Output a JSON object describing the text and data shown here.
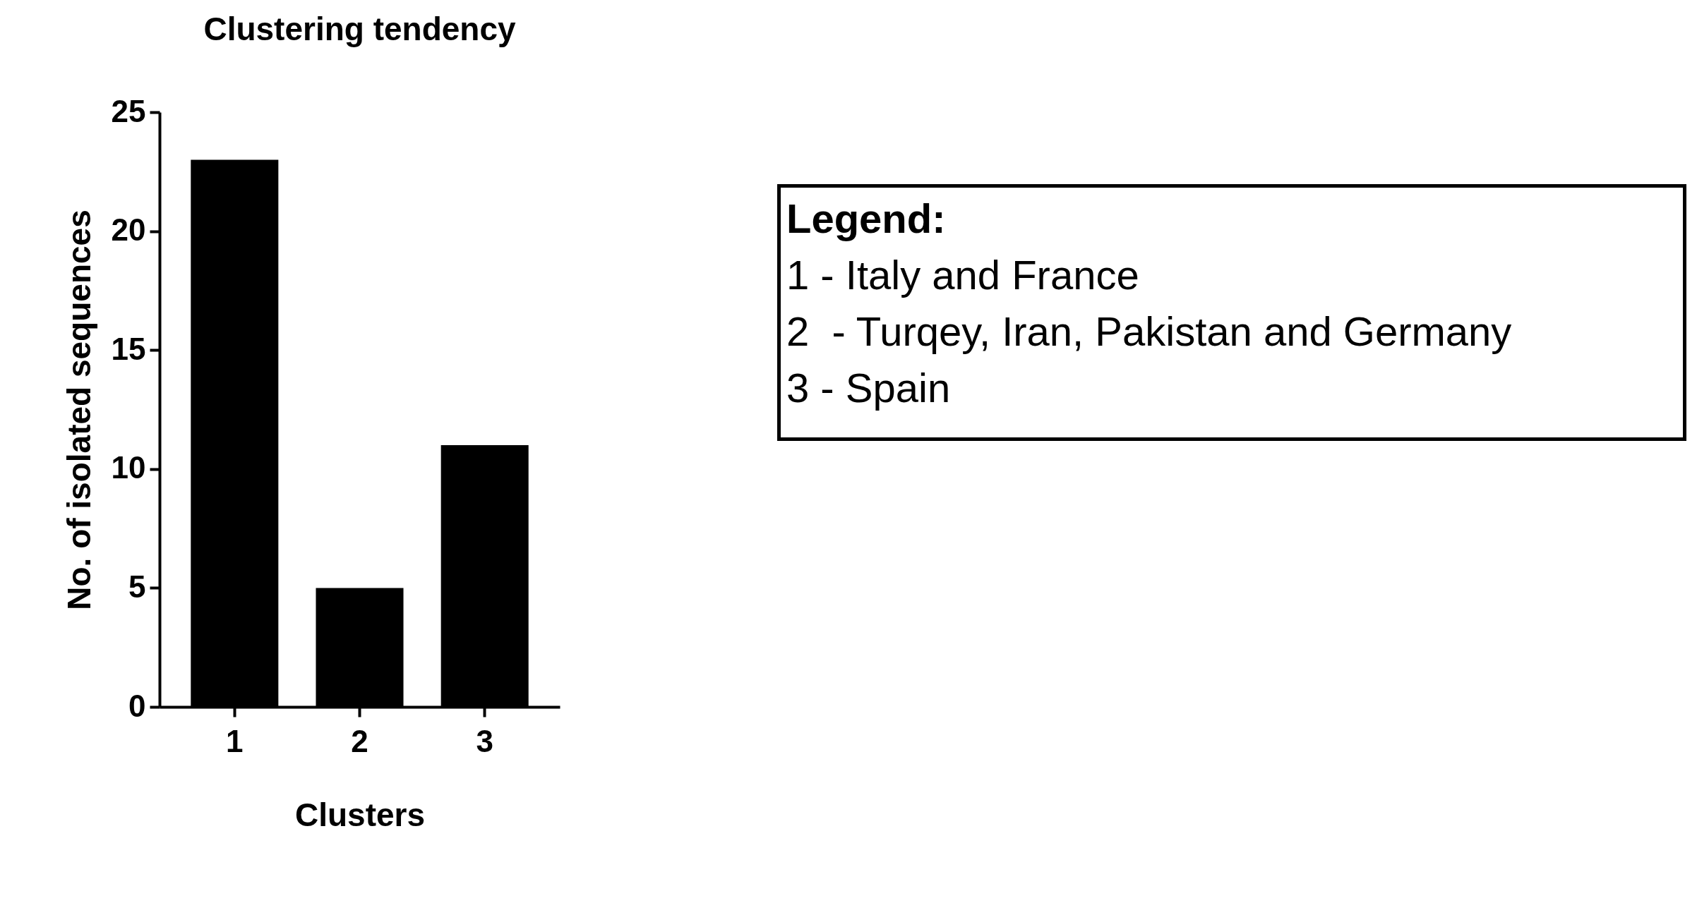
{
  "chart_data": {
    "type": "bar",
    "title": "Clustering tendency",
    "xlabel": "Clusters",
    "ylabel": "No. of isolated sequences",
    "categories": [
      "1",
      "2",
      "3"
    ],
    "values": [
      23,
      5,
      11
    ],
    "color": "#000000",
    "ylim": [
      0,
      25
    ],
    "yticks": [
      0,
      5,
      10,
      15,
      20,
      25
    ],
    "grid": false,
    "annotations": [
      "Legend:",
      "1 - Italy and France",
      "2  - Turqey, Iran, Pakistan and Germany",
      "3 - Spain"
    ]
  }
}
